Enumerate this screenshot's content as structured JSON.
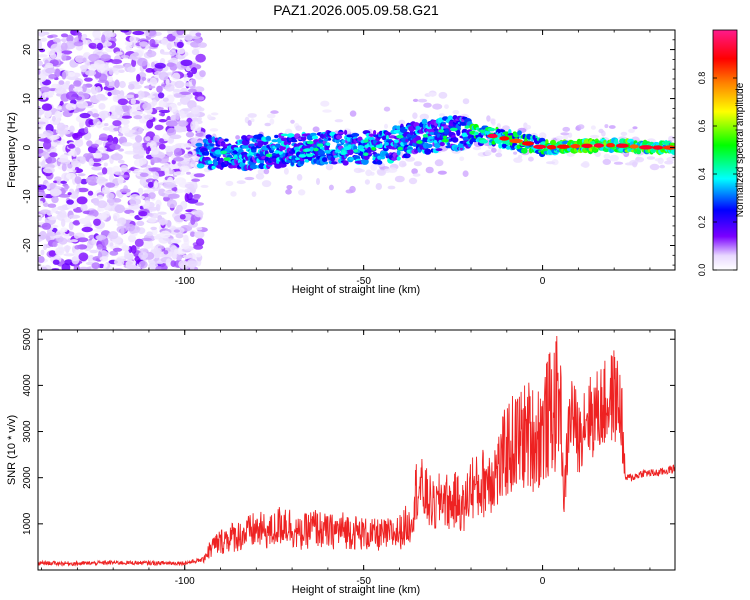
{
  "title": "PAZ1.2026.005.09.58.G21",
  "chart_data": [
    {
      "type": "heatmap",
      "title": "PAZ1.2026.005.09.58.G21",
      "xlabel": "Height of straight line (km)",
      "ylabel": "Frequency (Hz)",
      "xlim": [
        -141,
        37
      ],
      "ylim": [
        -25,
        24
      ],
      "xticks": [
        -100,
        -50,
        0
      ],
      "xtick_labels": [
        "-100",
        "-50",
        "0"
      ],
      "yticks": [
        20,
        10,
        0,
        -10,
        -20
      ],
      "ytick_labels": [
        "20",
        "10",
        "0",
        "-10",
        "-20"
      ],
      "grid": false,
      "description_series": {
        "noise_region_x": [
          -141,
          -95
        ],
        "signal_center_frequency": [
          {
            "x": -95,
            "f": -1
          },
          {
            "x": -80,
            "f": -1
          },
          {
            "x": -60,
            "f": 0
          },
          {
            "x": -45,
            "f": 0
          },
          {
            "x": -35,
            "f": 2
          },
          {
            "x": -25,
            "f": 3
          },
          {
            "x": -15,
            "f": 2.5
          },
          {
            "x": -5,
            "f": 1
          },
          {
            "x": 0,
            "f": 0
          },
          {
            "x": 10,
            "f": 0.3
          },
          {
            "x": 20,
            "f": 0.5
          },
          {
            "x": 30,
            "f": 0
          },
          {
            "x": 37,
            "f": 0
          }
        ]
      },
      "colorbar": {
        "label": "Normalized spectral amplitude",
        "range": [
          0,
          1
        ],
        "ticks": [
          0.0,
          0.2,
          0.4,
          0.6,
          0.8
        ],
        "tick_labels": [
          "0.0",
          "0.2",
          "0.4",
          "0.6",
          "0.8"
        ],
        "colors": [
          "#ffffff",
          "#e6d6ff",
          "#7a00ff",
          "#0000ff",
          "#00ffff",
          "#00ff00",
          "#ffff00",
          "#ff8000",
          "#ff0000",
          "#ff0080"
        ]
      }
    },
    {
      "type": "line",
      "xlabel": "Height of straight line (km)",
      "ylabel": "SNR (10 * v/v)",
      "xlim": [
        -141,
        37
      ],
      "ylim": [
        0,
        5200
      ],
      "xticks": [
        -100,
        -50,
        0
      ],
      "xtick_labels": [
        "-100",
        "-50",
        "0"
      ],
      "yticks": [
        1000,
        2000,
        3000,
        4000,
        5000
      ],
      "ytick_labels": [
        "1000",
        "2000",
        "3000",
        "4000",
        "5000"
      ],
      "grid": false,
      "series": [
        {
          "name": "SNR",
          "color": "#ee2222",
          "x": [
            -141,
            -130,
            -120,
            -110,
            -100,
            -95,
            -92,
            -88,
            -84,
            -80,
            -76,
            -72,
            -68,
            -64,
            -60,
            -56,
            -52,
            -48,
            -44,
            -40,
            -37,
            -35,
            -32,
            -30,
            -28,
            -26,
            -24,
            -22,
            -20,
            -18,
            -16,
            -14,
            -12,
            -10,
            -8,
            -6,
            -4,
            -2,
            0,
            2,
            4,
            5,
            6,
            7,
            8,
            9,
            10,
            12,
            14,
            16,
            18,
            20,
            22,
            23,
            25,
            28,
            32,
            37
          ],
          "y": [
            150,
            140,
            160,
            150,
            150,
            220,
            450,
            600,
            650,
            750,
            700,
            900,
            650,
            800,
            700,
            750,
            700,
            650,
            650,
            700,
            900,
            1700,
            1400,
            1200,
            1500,
            1300,
            1400,
            1200,
            1700,
            1600,
            1800,
            1900,
            2000,
            2400,
            2500,
            2600,
            2700,
            2600,
            2800,
            3100,
            3300,
            3700,
            1400,
            2800,
            3500,
            3200,
            2800,
            3400,
            3300,
            3500,
            3600,
            3800,
            3500,
            2000,
            2000,
            2100,
            2100,
            2200
          ]
        }
      ]
    }
  ]
}
